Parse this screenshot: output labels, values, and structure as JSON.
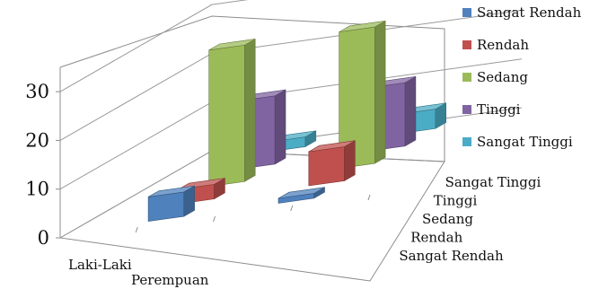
{
  "chart_data": {
    "type": "bar",
    "subtype": "3d-column",
    "categories": [
      "Laki-Laki",
      "Perempuan"
    ],
    "series": [
      {
        "name": "Sangat Rendah",
        "values": [
          5,
          1
        ],
        "color": "#4f81bd"
      },
      {
        "name": "Rendah",
        "values": [
          3,
          7
        ],
        "color": "#c0504d"
      },
      {
        "name": "Sedang",
        "values": [
          28,
          28
        ],
        "color": "#9bbb59"
      },
      {
        "name": "Tinggi",
        "values": [
          14,
          13
        ],
        "color": "#8064a2"
      },
      {
        "name": "Sangat Tinggi",
        "values": [
          2,
          4
        ],
        "color": "#4bacc6"
      }
    ],
    "depth_axis_labels": [
      "Sangat Rendah",
      "Rendah",
      "Sedang",
      "Tinggi",
      "Sangat Tinggi"
    ],
    "y_ticks": [
      "0",
      "10",
      "20",
      "30"
    ],
    "ylim": [
      0,
      35
    ],
    "grid": true,
    "legend_position": "right"
  }
}
